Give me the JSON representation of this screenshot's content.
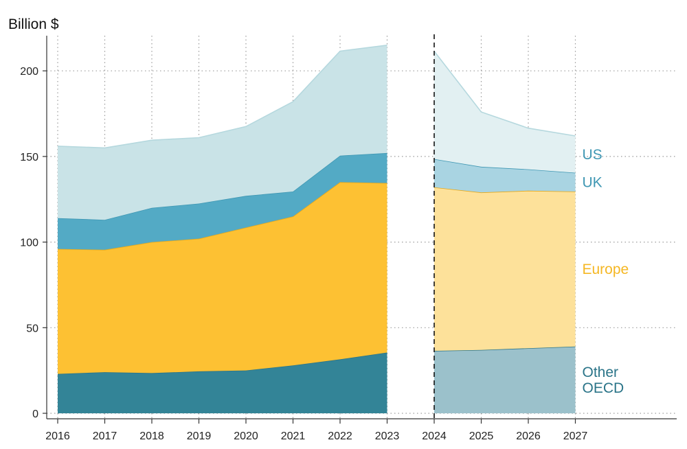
{
  "chart_data": {
    "type": "area",
    "stacked": true,
    "ylabel": "Billion $",
    "xlabel": "",
    "ylim": [
      0,
      220
    ],
    "yticks": [
      0,
      50,
      100,
      150,
      200
    ],
    "x": [
      "2016",
      "2017",
      "2018",
      "2019",
      "2020",
      "2021",
      "2022",
      "2023",
      "2024",
      "2025",
      "2026",
      "2027"
    ],
    "grid": true,
    "projection_start": "2024",
    "segments": [
      {
        "kind": "actual",
        "x": [
          "2016",
          "2017",
          "2018",
          "2019",
          "2020",
          "2021",
          "2022",
          "2023"
        ]
      },
      {
        "kind": "projection",
        "x": [
          "2024",
          "2025",
          "2026",
          "2027"
        ]
      }
    ],
    "series": [
      {
        "name": "Other OECD",
        "label_lines": [
          "Other",
          "OECD"
        ],
        "color": "#338497",
        "projection_color": "#9bc1cb",
        "line_color": "#2a7488",
        "label_color": "#2a7488",
        "values": [
          23,
          24,
          23.5,
          24.5,
          25,
          28,
          31.5,
          35.5,
          36.5,
          37,
          38,
          39
        ]
      },
      {
        "name": "Europe",
        "label_lines": [
          "Europe"
        ],
        "color": "#fdc133",
        "projection_color": "#fde19a",
        "line_color": "#e6a81a",
        "label_color": "#f5b723",
        "values": [
          73,
          71.5,
          76.5,
          77.5,
          83.5,
          87,
          103.5,
          99,
          95.5,
          92,
          92,
          90.5
        ]
      },
      {
        "name": "UK",
        "label_lines": [
          "UK"
        ],
        "color": "#53aac5",
        "projection_color": "#a9d4e2",
        "line_color": "#3f97b3",
        "label_color": "#3f97b3",
        "values": [
          18,
          17.5,
          20,
          20.5,
          18.5,
          14.5,
          15.5,
          17.5,
          16.5,
          15,
          12.5,
          11
        ]
      },
      {
        "name": "US",
        "label_lines": [
          "US"
        ],
        "color": "#c9e3e7",
        "projection_color": "#e2f0f2",
        "line_color": "#b5d8de",
        "label_color": "#3f97b3",
        "values": [
          42,
          42,
          39.5,
          38.5,
          40.5,
          52.5,
          61,
          63,
          63,
          32,
          24,
          21.5
        ]
      }
    ]
  }
}
